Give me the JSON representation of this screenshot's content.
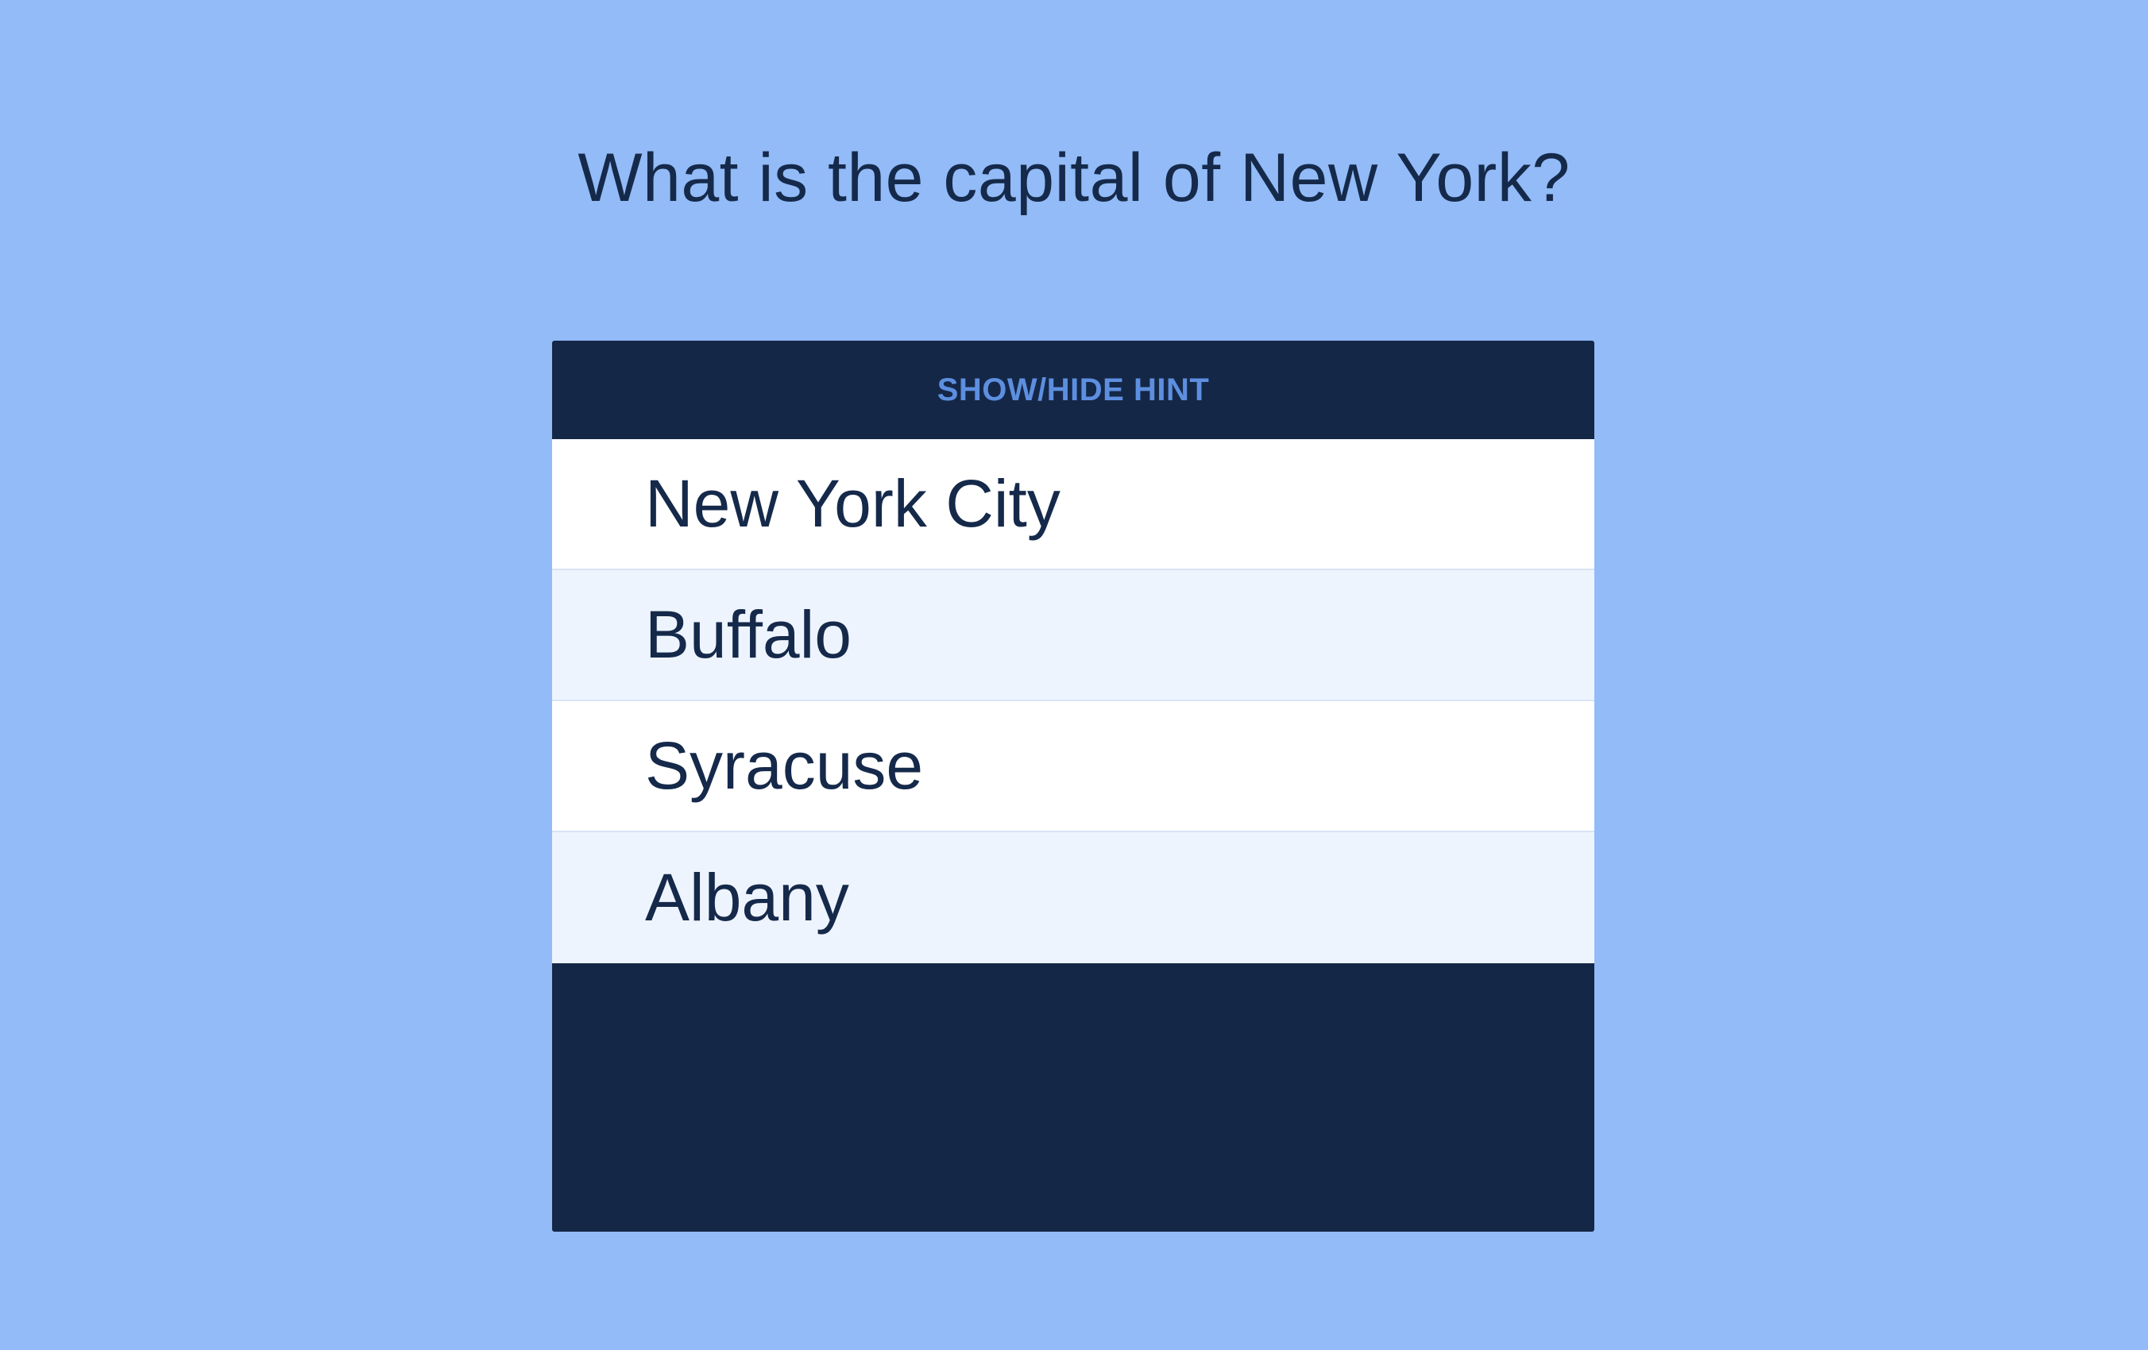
{
  "quiz": {
    "question": "What is the capital of New York?",
    "hint_button_label": "SHOW/HIDE HINT",
    "answers": [
      {
        "label": "New York City"
      },
      {
        "label": "Buffalo"
      },
      {
        "label": "Syracuse"
      },
      {
        "label": "Albany"
      }
    ]
  },
  "colors": {
    "background": "#92bbf7",
    "card_dark": "#152747",
    "hint_text": "#5d8fe0",
    "answer_odd": "#ffffff",
    "answer_even": "#eef4fe",
    "text_dark": "#15294a"
  }
}
